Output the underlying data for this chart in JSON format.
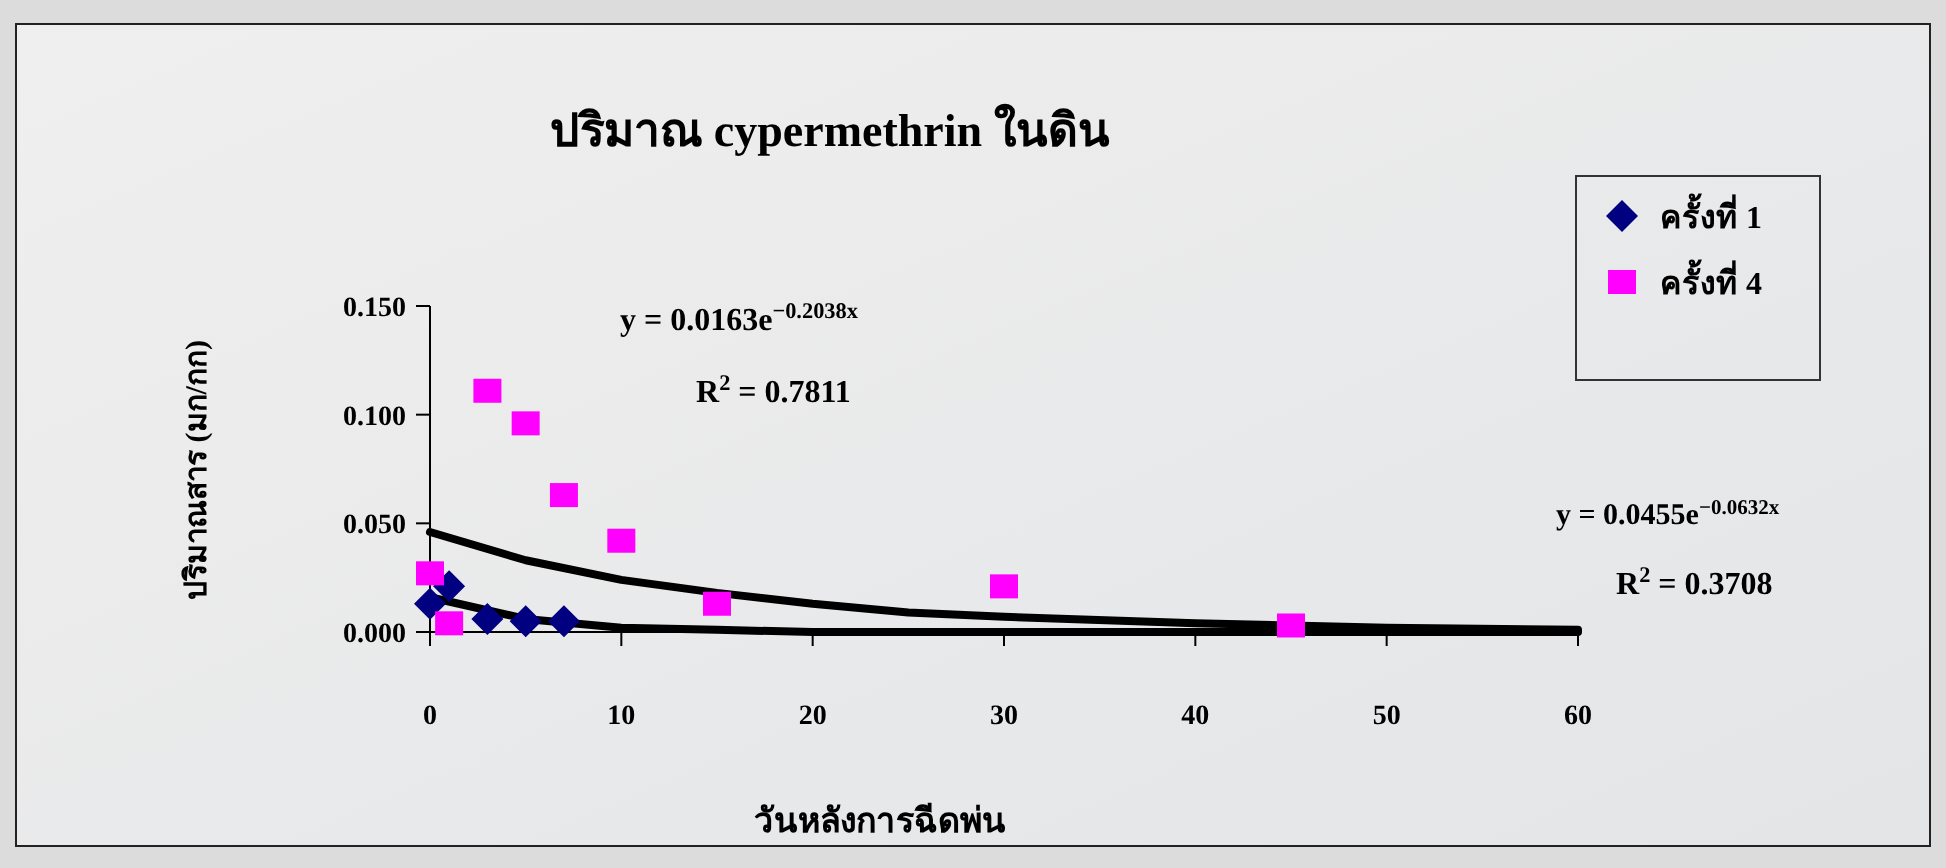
{
  "chart_data": {
    "type": "scatter",
    "title": "ปริมาณ cypermethrin ในดิน",
    "xlabel": "วันหลังการฉีดพ่น",
    "ylabel": "ปริมาณสาร (มก/กก)",
    "xlim": [
      0,
      60
    ],
    "xticks": [
      0,
      10,
      20,
      30,
      40,
      50,
      60
    ],
    "ylim": [
      0,
      0.15
    ],
    "yticks": [
      {
        "value": 0,
        "label": "0.000"
      },
      {
        "value": 0.05,
        "label": "0.050"
      },
      {
        "value": 0.1,
        "label": "0.100"
      },
      {
        "value": 0.15,
        "label": "0.150"
      }
    ],
    "grid": false,
    "legend": "top right",
    "series": [
      {
        "name": "ครั้งที่ 1",
        "color": "#000080",
        "marker": "diamond",
        "x": [
          0,
          1,
          3,
          5,
          7
        ],
        "values": [
          0.013,
          0.021,
          0.006,
          0.005,
          0.005
        ]
      },
      {
        "name": "ครั้งที่ 4",
        "color": "#ff00ff",
        "marker": "square",
        "x": [
          0,
          1,
          3,
          5,
          7,
          10,
          15,
          30,
          45
        ],
        "values": [
          0.027,
          0.004,
          0.111,
          0.096,
          0.063,
          0.042,
          0.013,
          0.021,
          0.003
        ]
      },
      {
        "type": "line",
        "color": "#000000",
        "marker": "none",
        "x": [
          0,
          5,
          10,
          15,
          20,
          30,
          40,
          60
        ],
        "values": [
          0.016,
          0.006,
          0.002,
          0.001,
          0.0,
          0.0,
          0.0,
          0.0
        ]
      },
      {
        "type": "line",
        "color": "#000000",
        "marker": "none",
        "x": [
          0,
          5,
          10,
          15,
          20,
          25,
          30,
          40,
          50,
          60
        ],
        "values": [
          0.046,
          0.033,
          0.024,
          0.018,
          0.013,
          0.009,
          0.007,
          0.004,
          0.002,
          0.001
        ]
      }
    ],
    "annotations": [
      "y = 0.0163e$^{−0.2038x}$",
      "R$^{2}$ = 0.7811",
      "y = 0.0455e$^{−0.0632x}$",
      "R$^{2}$ = 0.3708"
    ]
  }
}
